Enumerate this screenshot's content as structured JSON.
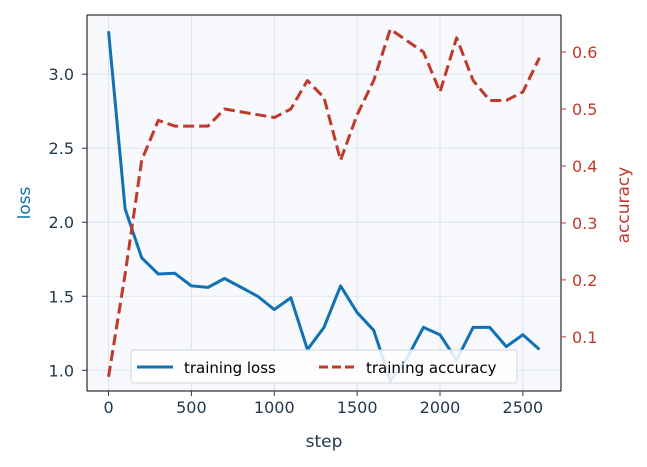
{
  "chart_data": {
    "type": "line",
    "title": "",
    "xlabel": "step",
    "ylabel_left": "loss",
    "ylabel_right": "accuracy",
    "xlim": [
      -130,
      2730
    ],
    "ylim_left": [
      0.86,
      3.4
    ],
    "ylim_right": [
      0.005,
      0.665
    ],
    "x_ticks": [
      0,
      500,
      1000,
      1500,
      2000,
      2500
    ],
    "y_left_ticks": [
      1.0,
      1.5,
      2.0,
      2.5,
      3.0
    ],
    "y_right_ticks": [
      0.1,
      0.2,
      0.3,
      0.4,
      0.5,
      0.6
    ],
    "grid": true,
    "legend_location": "lower center",
    "series": [
      {
        "name": "training loss",
        "axis": "left",
        "color": "#1072b5",
        "style": "solid",
        "x": [
          0,
          100,
          200,
          300,
          400,
          500,
          600,
          700,
          800,
          900,
          1000,
          1100,
          1200,
          1300,
          1400,
          1500,
          1600,
          1700,
          1800,
          1900,
          2000,
          2100,
          2200,
          2300,
          2400,
          2500,
          2600
        ],
        "values": [
          3.29,
          2.09,
          1.76,
          1.65,
          1.655,
          1.57,
          1.56,
          1.62,
          1.56,
          1.5,
          1.41,
          1.49,
          1.14,
          1.29,
          1.57,
          1.39,
          1.27,
          0.93,
          1.08,
          1.29,
          1.24,
          1.07,
          1.29,
          1.29,
          1.16,
          1.24,
          1.14
        ]
      },
      {
        "name": "training accuracy",
        "axis": "right",
        "color": "#c0392b",
        "style": "dashed",
        "x": [
          0,
          100,
          200,
          300,
          400,
          500,
          600,
          700,
          800,
          900,
          1000,
          1100,
          1200,
          1300,
          1400,
          1500,
          1600,
          1700,
          1800,
          1900,
          2000,
          2100,
          2200,
          2300,
          2400,
          2500,
          2600
        ],
        "values": [
          0.03,
          0.21,
          0.41,
          0.48,
          0.47,
          0.47,
          0.47,
          0.5,
          0.495,
          0.49,
          0.485,
          0.5,
          0.55,
          0.52,
          0.41,
          0.49,
          0.55,
          0.64,
          0.62,
          0.6,
          0.53,
          0.625,
          0.55,
          0.515,
          0.515,
          0.53,
          0.59
        ]
      }
    ]
  },
  "colors": {
    "plot_background": "#f7f9fc",
    "grid": "#dfe5ec",
    "axis_text": "#23384d",
    "left_axis": "#1072b5",
    "right_axis": "#c0392b"
  }
}
